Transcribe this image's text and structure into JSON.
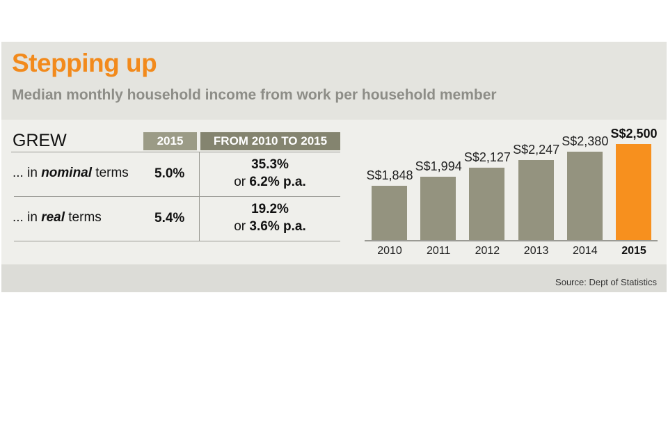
{
  "title": "Stepping up",
  "subtitle": "Median monthly household income from work per household member",
  "table": {
    "header": "GREW",
    "col1": "2015",
    "col2": "FROM 2010 TO 2015",
    "rows": [
      {
        "prefix": "... in ",
        "em": "nominal",
        "suffix": " terms",
        "y2015": "5.0%",
        "total": "35.3%",
        "or": "or ",
        "pa": "6.2% p.a."
      },
      {
        "prefix": "... in ",
        "em": "real",
        "suffix": " terms",
        "y2015": "5.4%",
        "total": "19.2%",
        "or": "or ",
        "pa": "3.6% p.a."
      }
    ]
  },
  "chart_data": {
    "type": "bar",
    "categories": [
      "2010",
      "2011",
      "2012",
      "2013",
      "2014",
      "2015"
    ],
    "values": [
      1848,
      1994,
      2127,
      2247,
      2380,
      2500
    ],
    "labels": [
      "S$1,848",
      "S$1,994",
      "S$2,127",
      "S$2,247",
      "S$2,380",
      "S$2,500"
    ],
    "highlight": "2015",
    "colors": {
      "bar": "#94937f",
      "highlight": "#f7901e"
    }
  },
  "source": "Source: Dept of Statistics"
}
